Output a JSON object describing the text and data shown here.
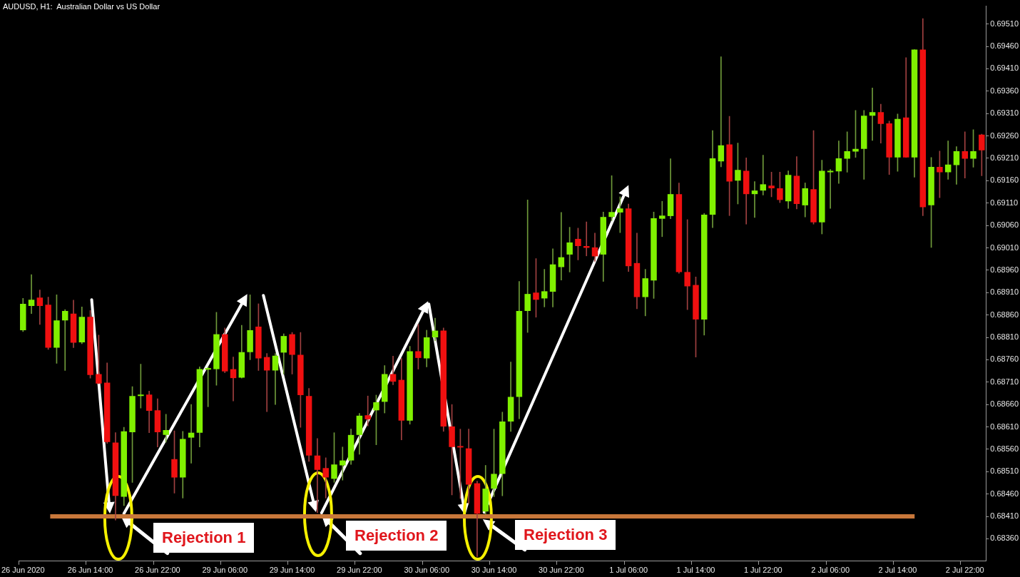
{
  "chart_data": {
    "type": "candlestick",
    "title": "AUDUSD, H1:  Australian Dollar vs US Dollar",
    "categories": [
      "26 Jun 2020",
      null,
      null,
      null,
      null,
      null,
      null,
      null,
      "26 Jun 14:00",
      null,
      null,
      null,
      null,
      null,
      null,
      null,
      "26 Jun 22:00",
      null,
      null,
      null,
      null,
      null,
      null,
      null,
      "29 Jun 06:00",
      null,
      null,
      null,
      null,
      null,
      null,
      null,
      "29 Jun 14:00",
      null,
      null,
      null,
      null,
      null,
      null,
      null,
      "29 Jun 22:00",
      null,
      null,
      null,
      null,
      null,
      null,
      null,
      "30 Jun 06:00",
      null,
      null,
      null,
      null,
      null,
      null,
      null,
      "30 Jun 14:00",
      null,
      null,
      null,
      null,
      null,
      null,
      null,
      "30 Jun 22:00",
      null,
      null,
      null,
      null,
      null,
      null,
      null,
      "1 Jul 06:00",
      null,
      null,
      null,
      null,
      null,
      null,
      null,
      "1 Jul 14:00",
      null,
      null,
      null,
      null,
      null,
      null,
      null,
      "1 Jul 22:00",
      null,
      null,
      null,
      null,
      null,
      null,
      null,
      "2 Jul 06:00",
      null,
      null,
      null,
      null,
      null,
      null,
      null,
      "2 Jul 14:00",
      null,
      null,
      null,
      null,
      null,
      null,
      null,
      "2 Jul 22:00",
      null,
      null
    ],
    "ohlc": [
      [
        0.68826,
        0.68897,
        0.68823,
        0.68885
      ],
      [
        0.6888,
        0.6895,
        0.68863,
        0.68894
      ],
      [
        0.68899,
        0.68916,
        0.68839,
        0.6888
      ],
      [
        0.68883,
        0.689,
        0.68783,
        0.68787
      ],
      [
        0.68787,
        0.68905,
        0.68752,
        0.68848
      ],
      [
        0.68848,
        0.68872,
        0.68736,
        0.68869
      ],
      [
        0.68863,
        0.68893,
        0.68787,
        0.68798
      ],
      [
        0.68799,
        0.68878,
        0.68796,
        0.68856
      ],
      [
        0.68856,
        0.6887,
        0.68719,
        0.68726
      ],
      [
        0.68728,
        0.68815,
        0.68706,
        0.68707
      ],
      [
        0.68709,
        0.68753,
        0.68573,
        0.68576
      ],
      [
        0.68575,
        0.68597,
        0.68402,
        0.68456
      ],
      [
        0.68454,
        0.68609,
        0.68434,
        0.686
      ],
      [
        0.68598,
        0.687,
        0.68486,
        0.68679
      ],
      [
        0.68679,
        0.6875,
        0.68652,
        0.68682
      ],
      [
        0.68682,
        0.6869,
        0.68597,
        0.68646
      ],
      [
        0.68647,
        0.68673,
        0.68565,
        0.68598
      ],
      [
        0.68592,
        0.68638,
        0.68576,
        0.68603
      ],
      [
        0.68538,
        0.68601,
        0.68462,
        0.68497
      ],
      [
        0.68497,
        0.686,
        0.68451,
        0.68583
      ],
      [
        0.68586,
        0.6866,
        0.68529,
        0.68597
      ],
      [
        0.68597,
        0.68744,
        0.68565,
        0.68739
      ],
      [
        0.68738,
        0.68744,
        0.68655,
        0.68741
      ],
      [
        0.68739,
        0.68866,
        0.68703,
        0.68817
      ],
      [
        0.68817,
        0.68831,
        0.68731,
        0.68734
      ],
      [
        0.68739,
        0.68766,
        0.68668,
        0.68719
      ],
      [
        0.6872,
        0.68837,
        0.68719,
        0.68777
      ],
      [
        0.68777,
        0.68905,
        0.6876,
        0.68826
      ],
      [
        0.68834,
        0.68885,
        0.68736,
        0.68763
      ],
      [
        0.68766,
        0.68774,
        0.68644,
        0.68736
      ],
      [
        0.68736,
        0.68774,
        0.6866,
        0.68769
      ],
      [
        0.68776,
        0.68818,
        0.68728,
        0.68813
      ],
      [
        0.68817,
        0.68821,
        0.68728,
        0.68771
      ],
      [
        0.68771,
        0.68821,
        0.68609,
        0.68681
      ],
      [
        0.68679,
        0.68696,
        0.68533,
        0.68546
      ],
      [
        0.68546,
        0.68584,
        0.68418,
        0.68514
      ],
      [
        0.68518,
        0.68541,
        0.68451,
        0.68497
      ],
      [
        0.68494,
        0.68597,
        0.68486,
        0.68526
      ],
      [
        0.68524,
        0.68565,
        0.68491,
        0.68535
      ],
      [
        0.68535,
        0.68605,
        0.68526,
        0.68592
      ],
      [
        0.68592,
        0.6864,
        0.68549,
        0.68635
      ],
      [
        0.68636,
        0.68679,
        0.68612,
        0.68627
      ],
      [
        0.68647,
        0.68681,
        0.6857,
        0.68665
      ],
      [
        0.68666,
        0.68747,
        0.68641,
        0.68728
      ],
      [
        0.68728,
        0.68768,
        0.68704,
        0.68711
      ],
      [
        0.68715,
        0.68763,
        0.68581,
        0.68624
      ],
      [
        0.68624,
        0.6879,
        0.68616,
        0.68779
      ],
      [
        0.68779,
        0.68839,
        0.68739,
        0.68764
      ],
      [
        0.68763,
        0.68826,
        0.68744,
        0.6881
      ],
      [
        0.6881,
        0.68853,
        0.68802,
        0.68825
      ],
      [
        0.68825,
        0.68831,
        0.686,
        0.68611
      ],
      [
        0.68611,
        0.6866,
        0.68458,
        0.68565
      ],
      [
        0.68567,
        0.68605,
        0.6845,
        0.68564
      ],
      [
        0.68562,
        0.68605,
        0.68439,
        0.68481
      ],
      [
        0.68484,
        0.68489,
        0.6832,
        0.68416
      ],
      [
        0.68421,
        0.68524,
        0.68415,
        0.68472
      ],
      [
        0.68472,
        0.68605,
        0.68454,
        0.68505
      ],
      [
        0.68505,
        0.68643,
        0.68456,
        0.68622
      ],
      [
        0.68622,
        0.68755,
        0.686,
        0.68677
      ],
      [
        0.68677,
        0.68935,
        0.68628,
        0.68869
      ],
      [
        0.68869,
        0.69117,
        0.68821,
        0.68907
      ],
      [
        0.6891,
        0.68986,
        0.68855,
        0.68894
      ],
      [
        0.68897,
        0.68962,
        0.68878,
        0.68913
      ],
      [
        0.68912,
        0.69008,
        0.68878,
        0.68973
      ],
      [
        0.68967,
        0.69089,
        0.68938,
        0.68989
      ],
      [
        0.68995,
        0.69056,
        0.68956,
        0.69022
      ],
      [
        0.6903,
        0.69054,
        0.68983,
        0.69014
      ],
      [
        0.69014,
        0.69068,
        0.68992,
        0.6901
      ],
      [
        0.69011,
        0.69043,
        0.6898,
        0.68991
      ],
      [
        0.68995,
        0.6909,
        0.68935,
        0.69079
      ],
      [
        0.69079,
        0.69171,
        0.69071,
        0.6909
      ],
      [
        0.69089,
        0.69124,
        0.69044,
        0.69098
      ],
      [
        0.69098,
        0.69108,
        0.68957,
        0.68969
      ],
      [
        0.68976,
        0.69043,
        0.68874,
        0.689
      ],
      [
        0.689,
        0.68962,
        0.68858,
        0.68942
      ],
      [
        0.68937,
        0.6909,
        0.68897,
        0.69076
      ],
      [
        0.69075,
        0.69114,
        0.69035,
        0.69082
      ],
      [
        0.69081,
        0.69209,
        0.69075,
        0.6913
      ],
      [
        0.6913,
        0.69155,
        0.68953,
        0.68956
      ],
      [
        0.68956,
        0.69073,
        0.68872,
        0.68924
      ],
      [
        0.68927,
        0.68945,
        0.68766,
        0.6885
      ],
      [
        0.6885,
        0.69087,
        0.68815,
        0.69084
      ],
      [
        0.69084,
        0.69272,
        0.69055,
        0.6921
      ],
      [
        0.69203,
        0.69437,
        0.69191,
        0.69239
      ],
      [
        0.69241,
        0.69304,
        0.69082,
        0.69158
      ],
      [
        0.6916,
        0.69244,
        0.69108,
        0.69184
      ],
      [
        0.69182,
        0.69211,
        0.69063,
        0.6913
      ],
      [
        0.6913,
        0.69158,
        0.69078,
        0.69138
      ],
      [
        0.69138,
        0.69217,
        0.69128,
        0.69152
      ],
      [
        0.69149,
        0.69179,
        0.69124,
        0.69143
      ],
      [
        0.69143,
        0.69179,
        0.69111,
        0.69117
      ],
      [
        0.69114,
        0.69182,
        0.69098,
        0.69173
      ],
      [
        0.69171,
        0.69214,
        0.69097,
        0.69108
      ],
      [
        0.69105,
        0.69155,
        0.69079,
        0.69143
      ],
      [
        0.69141,
        0.69272,
        0.69063,
        0.69067
      ],
      [
        0.69067,
        0.69206,
        0.69041,
        0.69182
      ],
      [
        0.69179,
        0.69185,
        0.69098,
        0.69182
      ],
      [
        0.69181,
        0.69249,
        0.69154,
        0.6921
      ],
      [
        0.69209,
        0.69269,
        0.69179,
        0.69226
      ],
      [
        0.69225,
        0.69317,
        0.69212,
        0.69231
      ],
      [
        0.69231,
        0.69317,
        0.69163,
        0.69305
      ],
      [
        0.69305,
        0.69367,
        0.6925,
        0.69313
      ],
      [
        0.69313,
        0.69331,
        0.69244,
        0.69287
      ],
      [
        0.69288,
        0.69293,
        0.69174,
        0.69212
      ],
      [
        0.69212,
        0.69309,
        0.69181,
        0.69298
      ],
      [
        0.69301,
        0.69435,
        0.69212,
        0.69212
      ],
      [
        0.69212,
        0.69453,
        0.69168,
        0.69453
      ],
      [
        0.69453,
        0.69522,
        0.69082,
        0.69101
      ],
      [
        0.69105,
        0.69212,
        0.69011,
        0.69191
      ],
      [
        0.69191,
        0.69226,
        0.69122,
        0.69179
      ],
      [
        0.69179,
        0.69249,
        0.69163,
        0.69196
      ],
      [
        0.69195,
        0.69236,
        0.69152,
        0.69226
      ],
      [
        0.69226,
        0.69269,
        0.69166,
        0.69209
      ],
      [
        0.69209,
        0.69274,
        0.6919,
        0.69226
      ],
      [
        0.69263,
        0.69264,
        0.69171,
        0.69228
      ]
    ],
    "ylim": [
      0.6831,
      0.6955
    ],
    "yticks": [
      {
        "value": 0.6836,
        "label": "0.68360"
      },
      {
        "value": 0.6841,
        "label": "0.68410"
      },
      {
        "value": 0.6846,
        "label": "0.68460"
      },
      {
        "value": 0.6851,
        "label": "0.68510"
      },
      {
        "value": 0.6856,
        "label": "0.68560"
      },
      {
        "value": 0.6861,
        "label": "0.68610"
      },
      {
        "value": 0.6866,
        "label": "0.68660"
      },
      {
        "value": 0.6871,
        "label": "0.68710"
      },
      {
        "value": 0.6876,
        "label": "0.68760"
      },
      {
        "value": 0.6881,
        "label": "0.68810"
      },
      {
        "value": 0.6886,
        "label": "0.68860"
      },
      {
        "value": 0.6891,
        "label": "0.68910"
      },
      {
        "value": 0.6896,
        "label": "0.68960"
      },
      {
        "value": 0.6901,
        "label": "0.69010"
      },
      {
        "value": 0.6906,
        "label": "0.69060"
      },
      {
        "value": 0.6911,
        "label": "0.69110"
      },
      {
        "value": 0.6916,
        "label": "0.69160"
      },
      {
        "value": 0.6921,
        "label": "0.69210"
      },
      {
        "value": 0.6926,
        "label": "0.69260"
      },
      {
        "value": 0.6931,
        "label": "0.69310"
      },
      {
        "value": 0.6936,
        "label": "0.69360"
      },
      {
        "value": 0.6941,
        "label": "0.69410"
      },
      {
        "value": 0.6946,
        "label": "0.69460"
      },
      {
        "value": 0.6951,
        "label": "0.69510"
      }
    ],
    "ref_lines": [
      {
        "axis": "y",
        "value": 0.6841,
        "color": "#c8773a"
      }
    ],
    "annotations": [
      "Rejection 1",
      "Rejection 2",
      "Rejection 3"
    ]
  }
}
